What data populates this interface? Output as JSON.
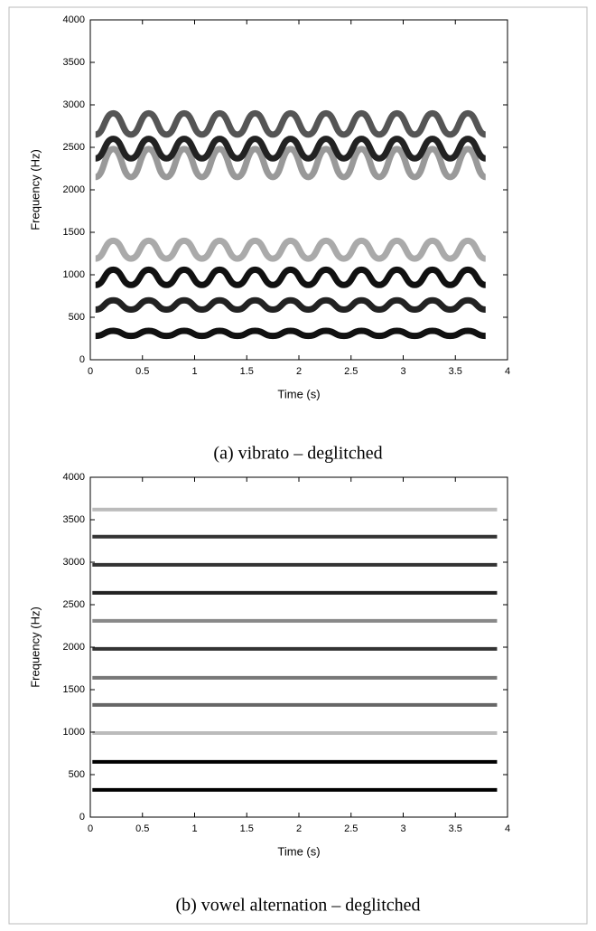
{
  "chart_data": [
    {
      "type": "line",
      "title": "(a) vibrato – deglitched",
      "xlabel": "Time (s)",
      "ylabel": "Frequency (Hz)",
      "xlim": [
        0,
        4
      ],
      "ylim": [
        0,
        4000
      ],
      "xticks": [
        0,
        0.5,
        1,
        1.5,
        2,
        2.5,
        3,
        3.5,
        4
      ],
      "yticks": [
        0,
        500,
        1000,
        1500,
        2000,
        2500,
        3000,
        3500,
        4000
      ],
      "x": [
        0.05,
        0.22,
        0.39,
        0.56,
        0.73,
        0.9,
        1.07,
        1.24,
        1.41,
        1.58,
        1.75,
        1.92,
        2.09,
        2.26,
        2.43,
        2.6,
        2.77,
        2.94,
        3.11,
        3.28,
        3.45,
        3.62,
        3.79
      ],
      "series": [
        {
          "color": "#111111",
          "values": [
            280,
            340,
            280,
            340,
            280,
            340,
            280,
            340,
            280,
            340,
            280,
            340,
            280,
            340,
            280,
            340,
            280,
            340,
            280,
            340,
            280,
            340,
            280
          ]
        },
        {
          "color": "#222222",
          "values": [
            590,
            700,
            590,
            700,
            590,
            700,
            590,
            700,
            590,
            700,
            590,
            700,
            590,
            700,
            590,
            700,
            590,
            700,
            590,
            700,
            590,
            700,
            590
          ]
        },
        {
          "color": "#111111",
          "values": [
            880,
            1060,
            880,
            1060,
            880,
            1060,
            880,
            1060,
            880,
            1060,
            880,
            1060,
            880,
            1060,
            880,
            1060,
            880,
            1060,
            880,
            1060,
            880,
            1060,
            880
          ]
        },
        {
          "color": "#aaaaaa",
          "values": [
            1190,
            1400,
            1190,
            1400,
            1190,
            1400,
            1190,
            1400,
            1190,
            1400,
            1190,
            1400,
            1190,
            1400,
            1190,
            1400,
            1190,
            1400,
            1190,
            1400,
            1190,
            1400,
            1190
          ]
        },
        {
          "color": "#999999",
          "values": [
            2150,
            2480,
            2150,
            2480,
            2150,
            2480,
            2150,
            2480,
            2150,
            2480,
            2150,
            2480,
            2150,
            2480,
            2150,
            2480,
            2150,
            2480,
            2150,
            2480,
            2150,
            2480,
            2150
          ]
        },
        {
          "color": "#222222",
          "values": [
            2370,
            2600,
            2370,
            2600,
            2370,
            2600,
            2370,
            2600,
            2370,
            2600,
            2370,
            2600,
            2370,
            2600,
            2370,
            2600,
            2370,
            2600,
            2370,
            2600,
            2370,
            2600,
            2370
          ]
        },
        {
          "color": "#555555",
          "values": [
            2650,
            2900,
            2650,
            2900,
            2650,
            2900,
            2650,
            2900,
            2650,
            2900,
            2650,
            2900,
            2650,
            2900,
            2650,
            2900,
            2650,
            2900,
            2650,
            2900,
            2650,
            2900,
            2650
          ]
        }
      ]
    },
    {
      "type": "line",
      "title": "(b) vowel alternation – deglitched",
      "xlabel": "Time (s)",
      "ylabel": "Frequency (Hz)",
      "xlim": [
        0,
        4
      ],
      "ylim": [
        0,
        4000
      ],
      "xticks": [
        0,
        0.5,
        1,
        1.5,
        2,
        2.5,
        3,
        3.5,
        4
      ],
      "yticks": [
        0,
        500,
        1000,
        1500,
        2000,
        2500,
        3000,
        3500,
        4000
      ],
      "x": [
        0.02,
        3.9
      ],
      "series": [
        {
          "color": "#000000",
          "values": [
            320,
            320
          ]
        },
        {
          "color": "#000000",
          "values": [
            650,
            650
          ]
        },
        {
          "color": "#bbbbbb",
          "values": [
            990,
            990
          ]
        },
        {
          "color": "#666666",
          "values": [
            1320,
            1320
          ]
        },
        {
          "color": "#777777",
          "values": [
            1640,
            1640
          ]
        },
        {
          "color": "#333333",
          "values": [
            1980,
            1980
          ]
        },
        {
          "color": "#888888",
          "values": [
            2310,
            2310
          ]
        },
        {
          "color": "#222222",
          "values": [
            2640,
            2640
          ]
        },
        {
          "color": "#333333",
          "values": [
            2970,
            2970
          ]
        },
        {
          "color": "#333333",
          "values": [
            3300,
            3300
          ]
        },
        {
          "color": "#bbbbbb",
          "values": [
            3620,
            3620
          ]
        }
      ]
    }
  ]
}
